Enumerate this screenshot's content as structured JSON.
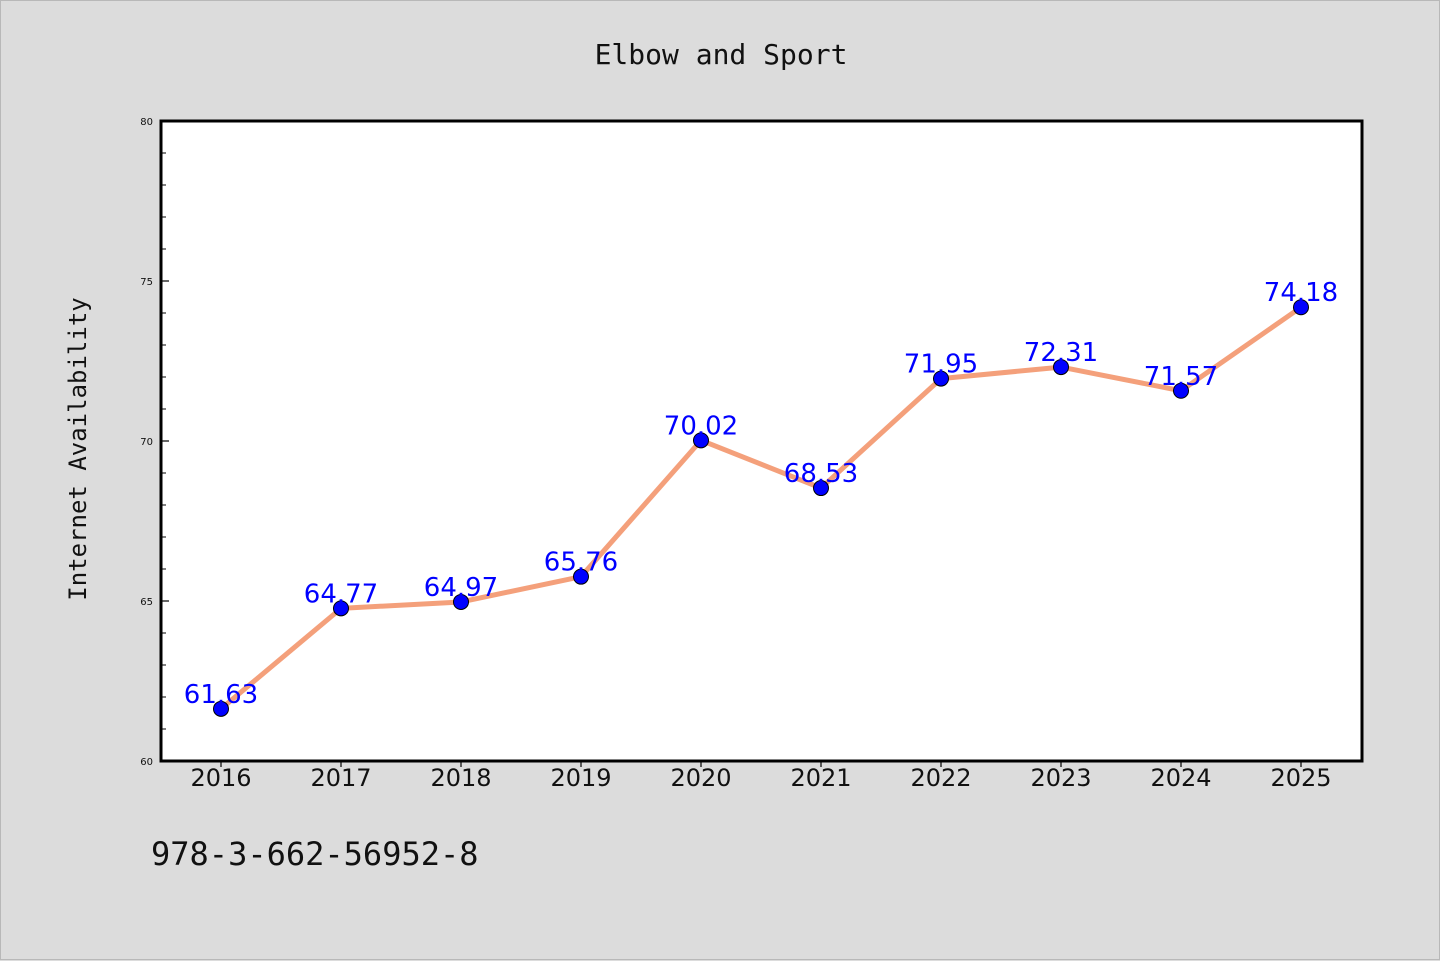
{
  "footer_text": "978-3-662-56952-8",
  "colors": {
    "background": "#dcdcdc",
    "plot_background": "#ffffff",
    "line": "#f4a07b",
    "marker": "#0000ff",
    "data_label": "#0000ff",
    "axis": "#000000"
  },
  "chart_data": {
    "type": "line",
    "title": "Elbow and Sport",
    "xlabel": "",
    "ylabel": "Internet Availability",
    "x": [
      "2016",
      "2017",
      "2018",
      "2019",
      "2020",
      "2021",
      "2022",
      "2023",
      "2024",
      "2025"
    ],
    "series": [
      {
        "values": [
          61.63,
          64.77,
          64.97,
          65.76,
          70.02,
          68.53,
          71.95,
          72.31,
          71.57,
          74.18
        ]
      }
    ],
    "data_labels": [
      "61.63",
      "64.77",
      "64.97",
      "65.76",
      "70.02",
      "68.53",
      "71.95",
      "72.31",
      "71.57",
      "74.18"
    ],
    "ylim": [
      60,
      80
    ],
    "y_ticks": [
      60,
      65,
      70,
      75,
      80
    ],
    "y_tick_labels": [
      "60",
      "65",
      "70",
      "75",
      "80"
    ],
    "grid": false,
    "legend": "none",
    "markers": "circle"
  }
}
